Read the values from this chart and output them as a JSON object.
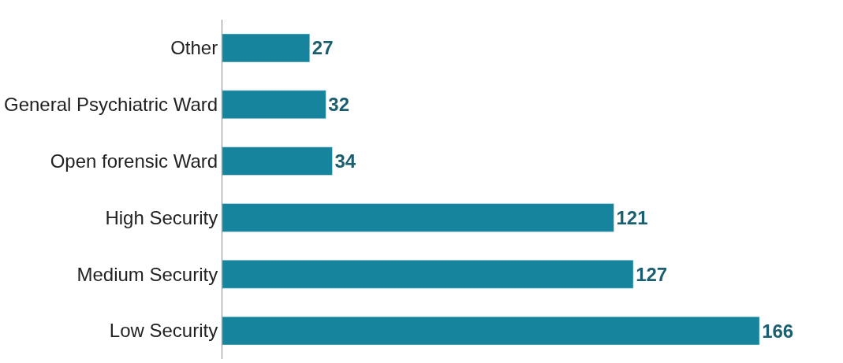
{
  "chart_data": {
    "type": "bar",
    "orientation": "horizontal",
    "categories": [
      "Other",
      "General Psychiatric Ward",
      "Open forensic Ward",
      "High Security",
      "Medium Security",
      "Low Security"
    ],
    "values": [
      27,
      32,
      34,
      121,
      127,
      166
    ],
    "color": "#16849c",
    "data_labels": true,
    "tick_labels": "y"
  }
}
